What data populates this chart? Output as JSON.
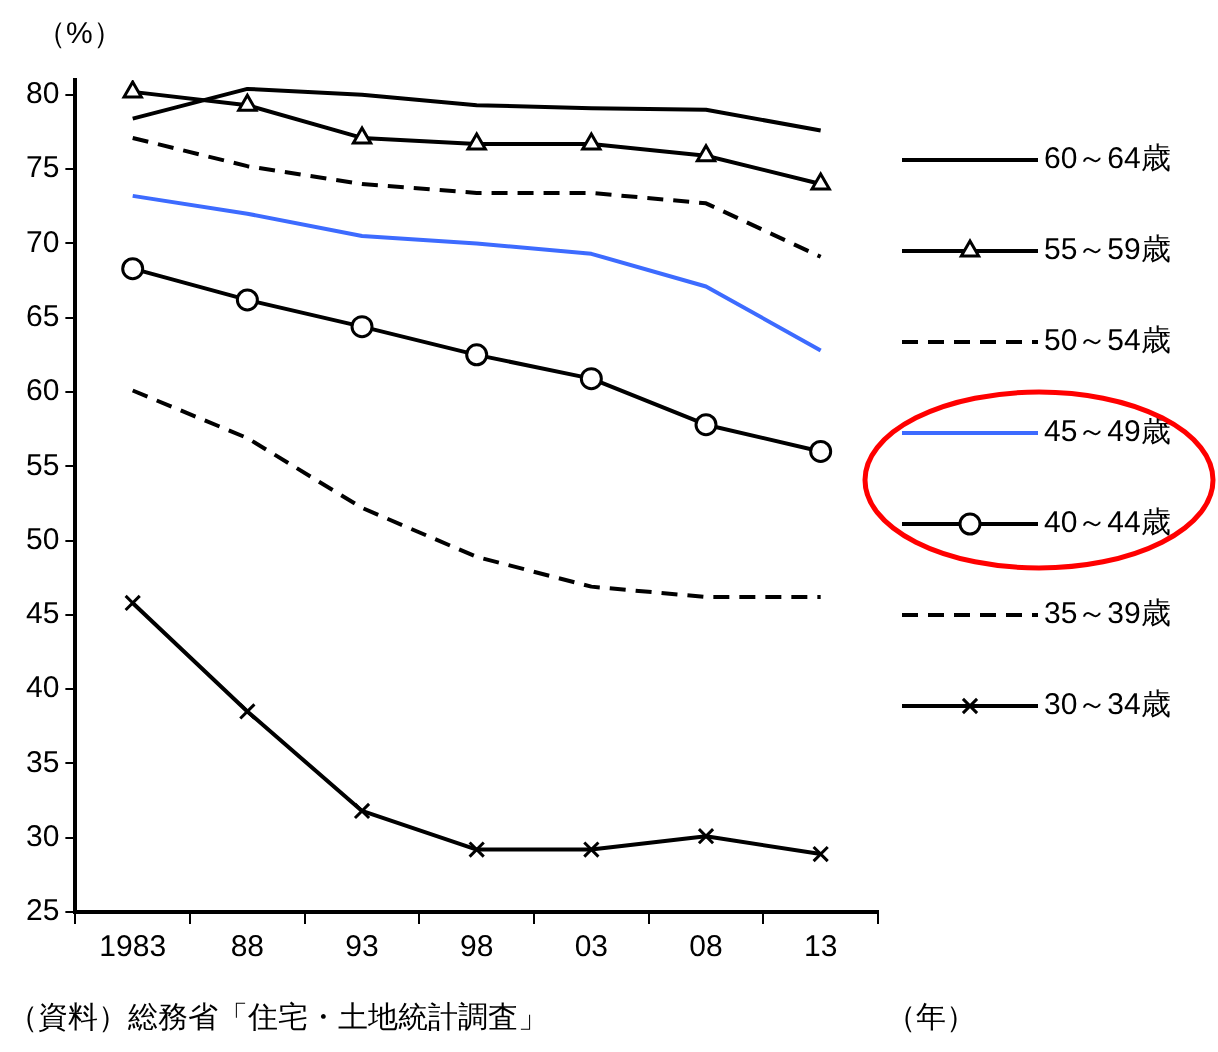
{
  "chart_data": {
    "type": "line",
    "ylabel": "（%）",
    "xlabel": "（年）",
    "annotations": [
      "（資料）総務省「住宅・土地統計調査」"
    ],
    "categories": [
      "1983",
      "88",
      "93",
      "98",
      "03",
      "08",
      "13"
    ],
    "ylim": [
      25,
      81
    ],
    "yticks": [
      25,
      30,
      35,
      40,
      45,
      50,
      55,
      60,
      65,
      70,
      75,
      80
    ],
    "grid": false,
    "legend": "right",
    "series": [
      {
        "name": "60～64歳",
        "color": "#000000",
        "marker": "none",
        "line_style": "solid",
        "values": [
          78.4,
          80.4,
          80.0,
          79.3,
          79.1,
          79.0,
          77.6
        ]
      },
      {
        "name": "55～59歳",
        "color": "#000000",
        "marker": "triangle",
        "line_style": "solid",
        "values": [
          80.2,
          79.3,
          77.1,
          76.7,
          76.7,
          75.9,
          74.0
        ]
      },
      {
        "name": "50～54歳",
        "color": "#000000",
        "marker": "none",
        "line_style": "dashed",
        "values": [
          77.1,
          75.2,
          74.0,
          73.4,
          73.4,
          72.7,
          69.1
        ]
      },
      {
        "name": "45～49歳",
        "color": "#3d6bff",
        "marker": "none",
        "line_style": "solid",
        "values": [
          73.2,
          72.0,
          70.5,
          70.0,
          69.3,
          67.1,
          62.8
        ]
      },
      {
        "name": "40～44歳",
        "color": "#000000",
        "marker": "circle",
        "line_style": "solid",
        "values": [
          68.3,
          66.2,
          64.4,
          62.5,
          60.9,
          57.8,
          56.0
        ]
      },
      {
        "name": "35～39歳",
        "color": "#000000",
        "marker": "none",
        "line_style": "dashed",
        "values": [
          60.1,
          56.9,
          52.2,
          48.9,
          46.9,
          46.2,
          46.2
        ]
      },
      {
        "name": "30～34歳",
        "color": "#000000",
        "marker": "cross",
        "line_style": "solid",
        "values": [
          45.8,
          38.5,
          31.8,
          29.2,
          29.2,
          30.1,
          28.9
        ]
      }
    ]
  }
}
